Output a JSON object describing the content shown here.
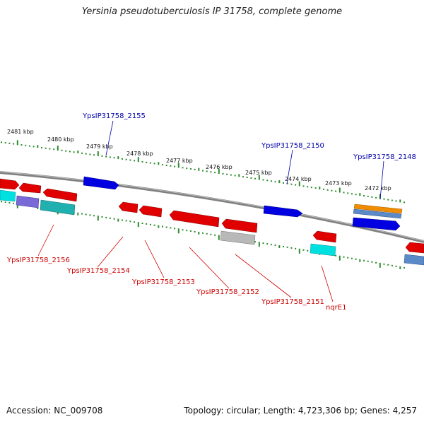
{
  "title": "Yersinia pseudotuberculosis IP 31758, complete genome",
  "footer": {
    "accession": "Accession: NC_009708",
    "stats": "Topology: circular; Length: 4,723,306 bp; Genes: 4,257"
  },
  "ruler_labels": [
    "2481 kbp",
    "2480 kbp",
    "2479 kbp",
    "2478 kbp",
    "2477 kbp",
    "2476 kbp",
    "2475 kbp",
    "2474 kbp",
    "2473 kbp",
    "2472 kbp"
  ],
  "gene_labels": {
    "forward": [
      "YpsIP31758_2155",
      "YpsIP31758_2150",
      "YpsIP31758_2148"
    ],
    "reverse": [
      "YpsIP31758_2156",
      "YpsIP31758_2154",
      "YpsIP31758_2153",
      "YpsIP31758_2152",
      "YpsIP31758_2151",
      "nqrE1"
    ]
  },
  "colors": {
    "forward_label": "#0000aa",
    "reverse_label": "#cc0000",
    "backbone": "#808080",
    "ruler_tick": "#2e8b2e",
    "gene_red": "#e00000",
    "gene_blue": "#0000e0",
    "gene_cyan": "#00e0e0",
    "gene_teal": "#20b0b0",
    "gene_purple": "#7a6ad8",
    "gene_gray": "#b8b8b8",
    "gene_orange": "#f08c00",
    "gene_steel": "#5a8ac8"
  }
}
